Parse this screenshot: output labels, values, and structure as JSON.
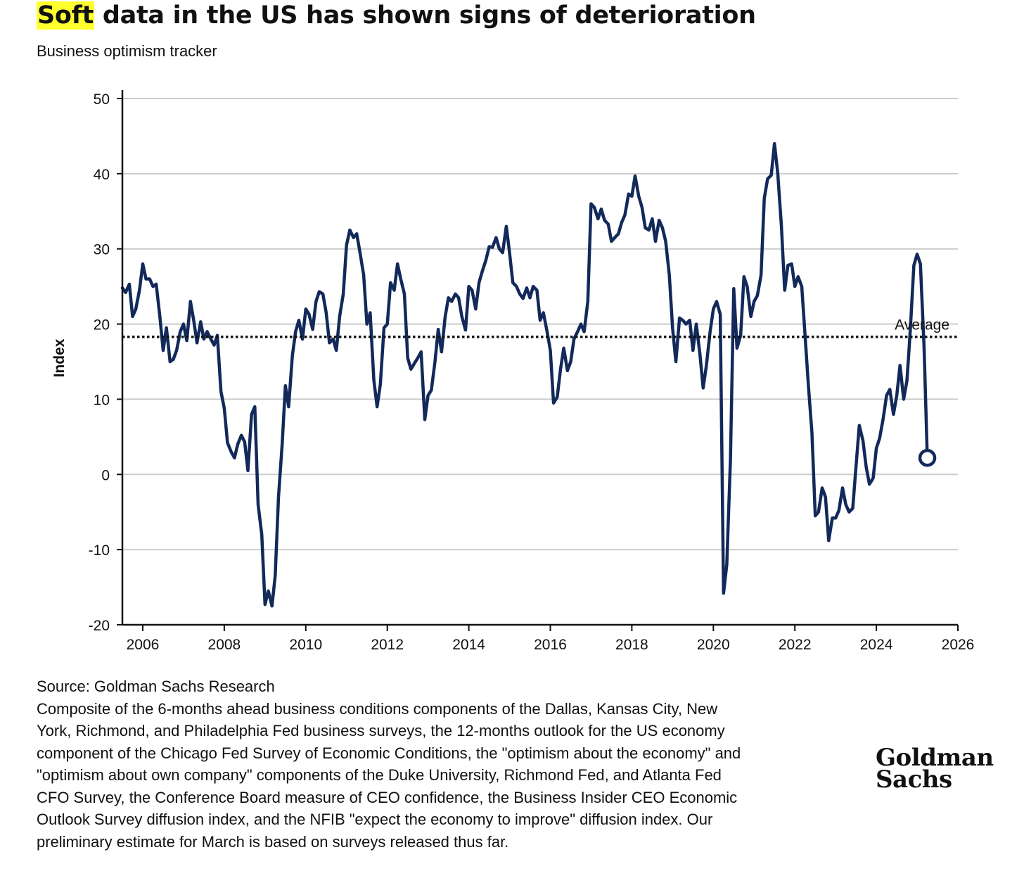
{
  "header": {
    "title_highlight": "Soft",
    "title_rest": " data in the US has shown signs of deterioration",
    "subtitle": "Business optimism tracker"
  },
  "footnote": {
    "source": "Source: Goldman Sachs Research",
    "description": "Composite of the 6-months ahead business conditions components of the Dallas, Kansas City, New York, Richmond, and Philadelphia Fed business surveys, the 12-months outlook for the US economy component of the Chicago Fed Survey of Economic Conditions, the \"optimism about the economy\" and \"optimism about own company\" components of the Duke University, Richmond Fed, and Atlanta Fed CFO Survey, the Conference Board measure of CEO confidence, the Business Insider CEO Economic Outlook Survey diffusion index, and the NFIB \"expect the economy to improve\" diffusion index. Our preliminary estimate for March is based on surveys released thus far."
  },
  "logo": {
    "line1": "Goldman",
    "line2": "Sachs"
  },
  "colors": {
    "line": "#12295a",
    "grid": "#cccccc",
    "highlight": "#ffff2e",
    "text": "#111111"
  },
  "chart_data": {
    "type": "line",
    "ylabel": "Index",
    "xlim": [
      2005.5,
      2026
    ],
    "ylim": [
      -20,
      50
    ],
    "x_ticks": [
      2006,
      2008,
      2010,
      2012,
      2014,
      2016,
      2018,
      2020,
      2022,
      2024,
      2026
    ],
    "y_ticks": [
      -20,
      -10,
      0,
      10,
      20,
      30,
      40,
      50
    ],
    "grid": "horizontal",
    "average": {
      "label": "Average",
      "value": 18.3
    },
    "last_point_marker": "hollow-circle",
    "series": [
      {
        "points": [
          [
            2005.5,
            24.8
          ],
          [
            2005.58,
            24.2
          ],
          [
            2005.67,
            25.3
          ],
          [
            2005.75,
            21.0
          ],
          [
            2005.83,
            22.0
          ],
          [
            2005.92,
            24.5
          ],
          [
            2006.0,
            28.0
          ],
          [
            2006.08,
            26.0
          ],
          [
            2006.17,
            26.0
          ],
          [
            2006.25,
            25.0
          ],
          [
            2006.33,
            25.3
          ],
          [
            2006.42,
            21.0
          ],
          [
            2006.5,
            16.5
          ],
          [
            2006.58,
            19.5
          ],
          [
            2006.67,
            15.0
          ],
          [
            2006.75,
            15.3
          ],
          [
            2006.83,
            16.5
          ],
          [
            2006.92,
            19.0
          ],
          [
            2007.0,
            20.0
          ],
          [
            2007.08,
            17.8
          ],
          [
            2007.17,
            23.0
          ],
          [
            2007.25,
            20.5
          ],
          [
            2007.33,
            17.5
          ],
          [
            2007.42,
            20.3
          ],
          [
            2007.5,
            18.0
          ],
          [
            2007.58,
            19.0
          ],
          [
            2007.67,
            18.0
          ],
          [
            2007.75,
            17.2
          ],
          [
            2007.83,
            18.5
          ],
          [
            2007.92,
            11.0
          ],
          [
            2008.0,
            8.8
          ],
          [
            2008.08,
            4.2
          ],
          [
            2008.17,
            3.0
          ],
          [
            2008.25,
            2.2
          ],
          [
            2008.33,
            4.0
          ],
          [
            2008.42,
            5.2
          ],
          [
            2008.5,
            4.3
          ],
          [
            2008.58,
            0.5
          ],
          [
            2008.67,
            8.0
          ],
          [
            2008.75,
            9.0
          ],
          [
            2008.83,
            -4.0
          ],
          [
            2008.92,
            -8.0
          ],
          [
            2009.0,
            -17.3
          ],
          [
            2009.08,
            -15.5
          ],
          [
            2009.17,
            -17.5
          ],
          [
            2009.25,
            -13.5
          ],
          [
            2009.33,
            -3.0
          ],
          [
            2009.42,
            4.0
          ],
          [
            2009.5,
            11.8
          ],
          [
            2009.58,
            9.0
          ],
          [
            2009.67,
            15.8
          ],
          [
            2009.75,
            19.0
          ],
          [
            2009.83,
            20.5
          ],
          [
            2009.92,
            18.0
          ],
          [
            2010.0,
            22.0
          ],
          [
            2010.08,
            21.3
          ],
          [
            2010.17,
            19.3
          ],
          [
            2010.25,
            23.0
          ],
          [
            2010.33,
            24.3
          ],
          [
            2010.42,
            24.0
          ],
          [
            2010.5,
            21.5
          ],
          [
            2010.58,
            17.5
          ],
          [
            2010.67,
            18.0
          ],
          [
            2010.75,
            16.5
          ],
          [
            2010.83,
            21.0
          ],
          [
            2010.92,
            24.0
          ],
          [
            2011.0,
            30.5
          ],
          [
            2011.08,
            32.5
          ],
          [
            2011.17,
            31.5
          ],
          [
            2011.25,
            32.0
          ],
          [
            2011.33,
            29.5
          ],
          [
            2011.42,
            26.5
          ],
          [
            2011.5,
            20.0
          ],
          [
            2011.58,
            21.5
          ],
          [
            2011.67,
            12.5
          ],
          [
            2011.75,
            9.0
          ],
          [
            2011.83,
            12.0
          ],
          [
            2011.92,
            19.5
          ],
          [
            2012.0,
            20.0
          ],
          [
            2012.08,
            25.5
          ],
          [
            2012.17,
            24.5
          ],
          [
            2012.25,
            28.0
          ],
          [
            2012.33,
            26.0
          ],
          [
            2012.42,
            24.0
          ],
          [
            2012.5,
            15.5
          ],
          [
            2012.58,
            14.0
          ],
          [
            2012.67,
            14.8
          ],
          [
            2012.75,
            15.5
          ],
          [
            2012.83,
            16.3
          ],
          [
            2012.92,
            7.3
          ],
          [
            2013.0,
            10.5
          ],
          [
            2013.08,
            11.2
          ],
          [
            2013.17,
            15.0
          ],
          [
            2013.25,
            19.3
          ],
          [
            2013.33,
            16.3
          ],
          [
            2013.42,
            21.0
          ],
          [
            2013.5,
            23.5
          ],
          [
            2013.58,
            23.0
          ],
          [
            2013.67,
            24.0
          ],
          [
            2013.75,
            23.5
          ],
          [
            2013.83,
            21.0
          ],
          [
            2013.92,
            19.2
          ],
          [
            2014.0,
            25.0
          ],
          [
            2014.08,
            24.5
          ],
          [
            2014.17,
            22.0
          ],
          [
            2014.25,
            25.5
          ],
          [
            2014.33,
            27.0
          ],
          [
            2014.42,
            28.5
          ],
          [
            2014.5,
            30.3
          ],
          [
            2014.58,
            30.2
          ],
          [
            2014.67,
            31.5
          ],
          [
            2014.75,
            30.0
          ],
          [
            2014.83,
            29.5
          ],
          [
            2014.92,
            33.0
          ],
          [
            2015.0,
            29.5
          ],
          [
            2015.08,
            25.5
          ],
          [
            2015.17,
            25.0
          ],
          [
            2015.25,
            24.0
          ],
          [
            2015.33,
            23.4
          ],
          [
            2015.42,
            24.8
          ],
          [
            2015.5,
            23.5
          ],
          [
            2015.58,
            25.0
          ],
          [
            2015.67,
            24.5
          ],
          [
            2015.75,
            20.5
          ],
          [
            2015.83,
            21.5
          ],
          [
            2015.92,
            19.0
          ],
          [
            2016.0,
            16.5
          ],
          [
            2016.08,
            9.5
          ],
          [
            2016.17,
            10.3
          ],
          [
            2016.25,
            14.0
          ],
          [
            2016.33,
            16.8
          ],
          [
            2016.42,
            13.8
          ],
          [
            2016.5,
            15.0
          ],
          [
            2016.58,
            18.0
          ],
          [
            2016.67,
            19.0
          ],
          [
            2016.75,
            20.0
          ],
          [
            2016.83,
            19.0
          ],
          [
            2016.92,
            23.0
          ],
          [
            2017.0,
            36.0
          ],
          [
            2017.08,
            35.5
          ],
          [
            2017.17,
            34.0
          ],
          [
            2017.25,
            35.3
          ],
          [
            2017.33,
            33.8
          ],
          [
            2017.42,
            33.3
          ],
          [
            2017.5,
            31.0
          ],
          [
            2017.58,
            31.5
          ],
          [
            2017.67,
            32.0
          ],
          [
            2017.75,
            33.5
          ],
          [
            2017.83,
            34.5
          ],
          [
            2017.92,
            37.3
          ],
          [
            2018.0,
            37.0
          ],
          [
            2018.08,
            39.7
          ],
          [
            2018.17,
            37.0
          ],
          [
            2018.25,
            35.5
          ],
          [
            2018.33,
            32.8
          ],
          [
            2018.42,
            32.5
          ],
          [
            2018.5,
            34.0
          ],
          [
            2018.58,
            31.0
          ],
          [
            2018.67,
            33.8
          ],
          [
            2018.75,
            32.8
          ],
          [
            2018.83,
            31.0
          ],
          [
            2018.92,
            26.5
          ],
          [
            2019.0,
            19.5
          ],
          [
            2019.08,
            15.0
          ],
          [
            2019.17,
            20.8
          ],
          [
            2019.25,
            20.5
          ],
          [
            2019.33,
            20.0
          ],
          [
            2019.42,
            20.5
          ],
          [
            2019.5,
            16.5
          ],
          [
            2019.58,
            20.0
          ],
          [
            2019.67,
            16.0
          ],
          [
            2019.75,
            11.5
          ],
          [
            2019.83,
            14.5
          ],
          [
            2019.92,
            19.0
          ],
          [
            2020.0,
            22.0
          ],
          [
            2020.08,
            23.0
          ],
          [
            2020.17,
            21.3
          ],
          [
            2020.25,
            -15.8
          ],
          [
            2020.33,
            -12.0
          ],
          [
            2020.42,
            2.0
          ],
          [
            2020.5,
            24.7
          ],
          [
            2020.58,
            16.8
          ],
          [
            2020.67,
            18.5
          ],
          [
            2020.75,
            26.3
          ],
          [
            2020.83,
            25.0
          ],
          [
            2020.92,
            21.0
          ],
          [
            2021.0,
            23.0
          ],
          [
            2021.08,
            23.8
          ],
          [
            2021.17,
            26.5
          ],
          [
            2021.25,
            36.7
          ],
          [
            2021.33,
            39.3
          ],
          [
            2021.42,
            39.8
          ],
          [
            2021.5,
            44.0
          ],
          [
            2021.58,
            40.0
          ],
          [
            2021.67,
            33.0
          ],
          [
            2021.75,
            24.5
          ],
          [
            2021.83,
            27.8
          ],
          [
            2021.92,
            28.0
          ],
          [
            2022.0,
            25.0
          ],
          [
            2022.08,
            26.3
          ],
          [
            2022.17,
            25.0
          ],
          [
            2022.25,
            18.5
          ],
          [
            2022.33,
            12.0
          ],
          [
            2022.42,
            5.5
          ],
          [
            2022.5,
            -5.5
          ],
          [
            2022.58,
            -5.0
          ],
          [
            2022.67,
            -1.8
          ],
          [
            2022.75,
            -3.0
          ],
          [
            2022.83,
            -8.8
          ],
          [
            2022.92,
            -5.8
          ],
          [
            2023.0,
            -5.8
          ],
          [
            2023.08,
            -4.8
          ],
          [
            2023.17,
            -1.8
          ],
          [
            2023.25,
            -4.0
          ],
          [
            2023.33,
            -5.0
          ],
          [
            2023.42,
            -4.5
          ],
          [
            2023.5,
            1.0
          ],
          [
            2023.58,
            6.5
          ],
          [
            2023.67,
            4.5
          ],
          [
            2023.75,
            1.0
          ],
          [
            2023.83,
            -1.3
          ],
          [
            2023.92,
            -0.5
          ],
          [
            2024.0,
            3.5
          ],
          [
            2024.08,
            4.8
          ],
          [
            2024.17,
            7.5
          ],
          [
            2024.25,
            10.5
          ],
          [
            2024.33,
            11.3
          ],
          [
            2024.42,
            8.0
          ],
          [
            2024.5,
            10.5
          ],
          [
            2024.58,
            14.5
          ],
          [
            2024.67,
            10.0
          ],
          [
            2024.75,
            12.5
          ],
          [
            2024.83,
            19.0
          ],
          [
            2024.92,
            27.8
          ],
          [
            2025.0,
            29.3
          ],
          [
            2025.08,
            28.0
          ],
          [
            2025.17,
            17.0
          ],
          [
            2025.25,
            2.2
          ]
        ]
      }
    ]
  }
}
